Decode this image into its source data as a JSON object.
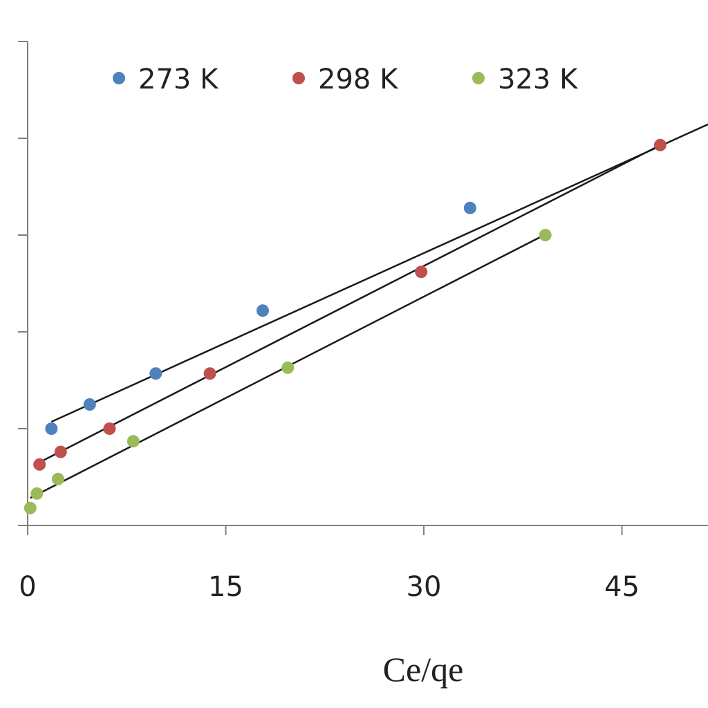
{
  "chart_data": {
    "type": "scatter",
    "title": "",
    "xlabel": "Ce/qe",
    "ylabel": "",
    "xlim": [
      0,
      52
    ],
    "ylim": [
      0,
      5
    ],
    "xticks": [
      0,
      15,
      30,
      45
    ],
    "y_tick_count": 5,
    "show_y_tick_labels": false,
    "grid": false,
    "legend_position": "top",
    "series": [
      {
        "name": "273 K",
        "color": "#4f81bd",
        "points": [
          [
            1.8,
            1.0
          ],
          [
            4.7,
            1.25
          ],
          [
            9.7,
            1.57
          ],
          [
            17.8,
            2.22
          ],
          [
            33.5,
            3.28
          ]
        ],
        "fit": {
          "x_start": 1.8,
          "x_end": 52,
          "slope": 0.0618,
          "intercept": 0.96
        }
      },
      {
        "name": "298 K",
        "color": "#c0504d",
        "points": [
          [
            0.9,
            0.63
          ],
          [
            2.5,
            0.76
          ],
          [
            6.2,
            1.0
          ],
          [
            13.8,
            1.57
          ],
          [
            29.8,
            2.62
          ],
          [
            47.9,
            3.93
          ]
        ],
        "fit": {
          "x_start": 0.9,
          "x_end": 47.9,
          "slope": 0.0697,
          "intercept": 0.59
        }
      },
      {
        "name": "323 K",
        "color": "#9bbb59",
        "points": [
          [
            0.2,
            0.18
          ],
          [
            0.7,
            0.33
          ],
          [
            2.3,
            0.48
          ],
          [
            8.0,
            0.87
          ],
          [
            19.7,
            1.63
          ],
          [
            39.2,
            3.0
          ]
        ],
        "fit": {
          "x_start": 0.2,
          "x_end": 39.2,
          "slope": 0.0698,
          "intercept": 0.27
        }
      }
    ]
  }
}
